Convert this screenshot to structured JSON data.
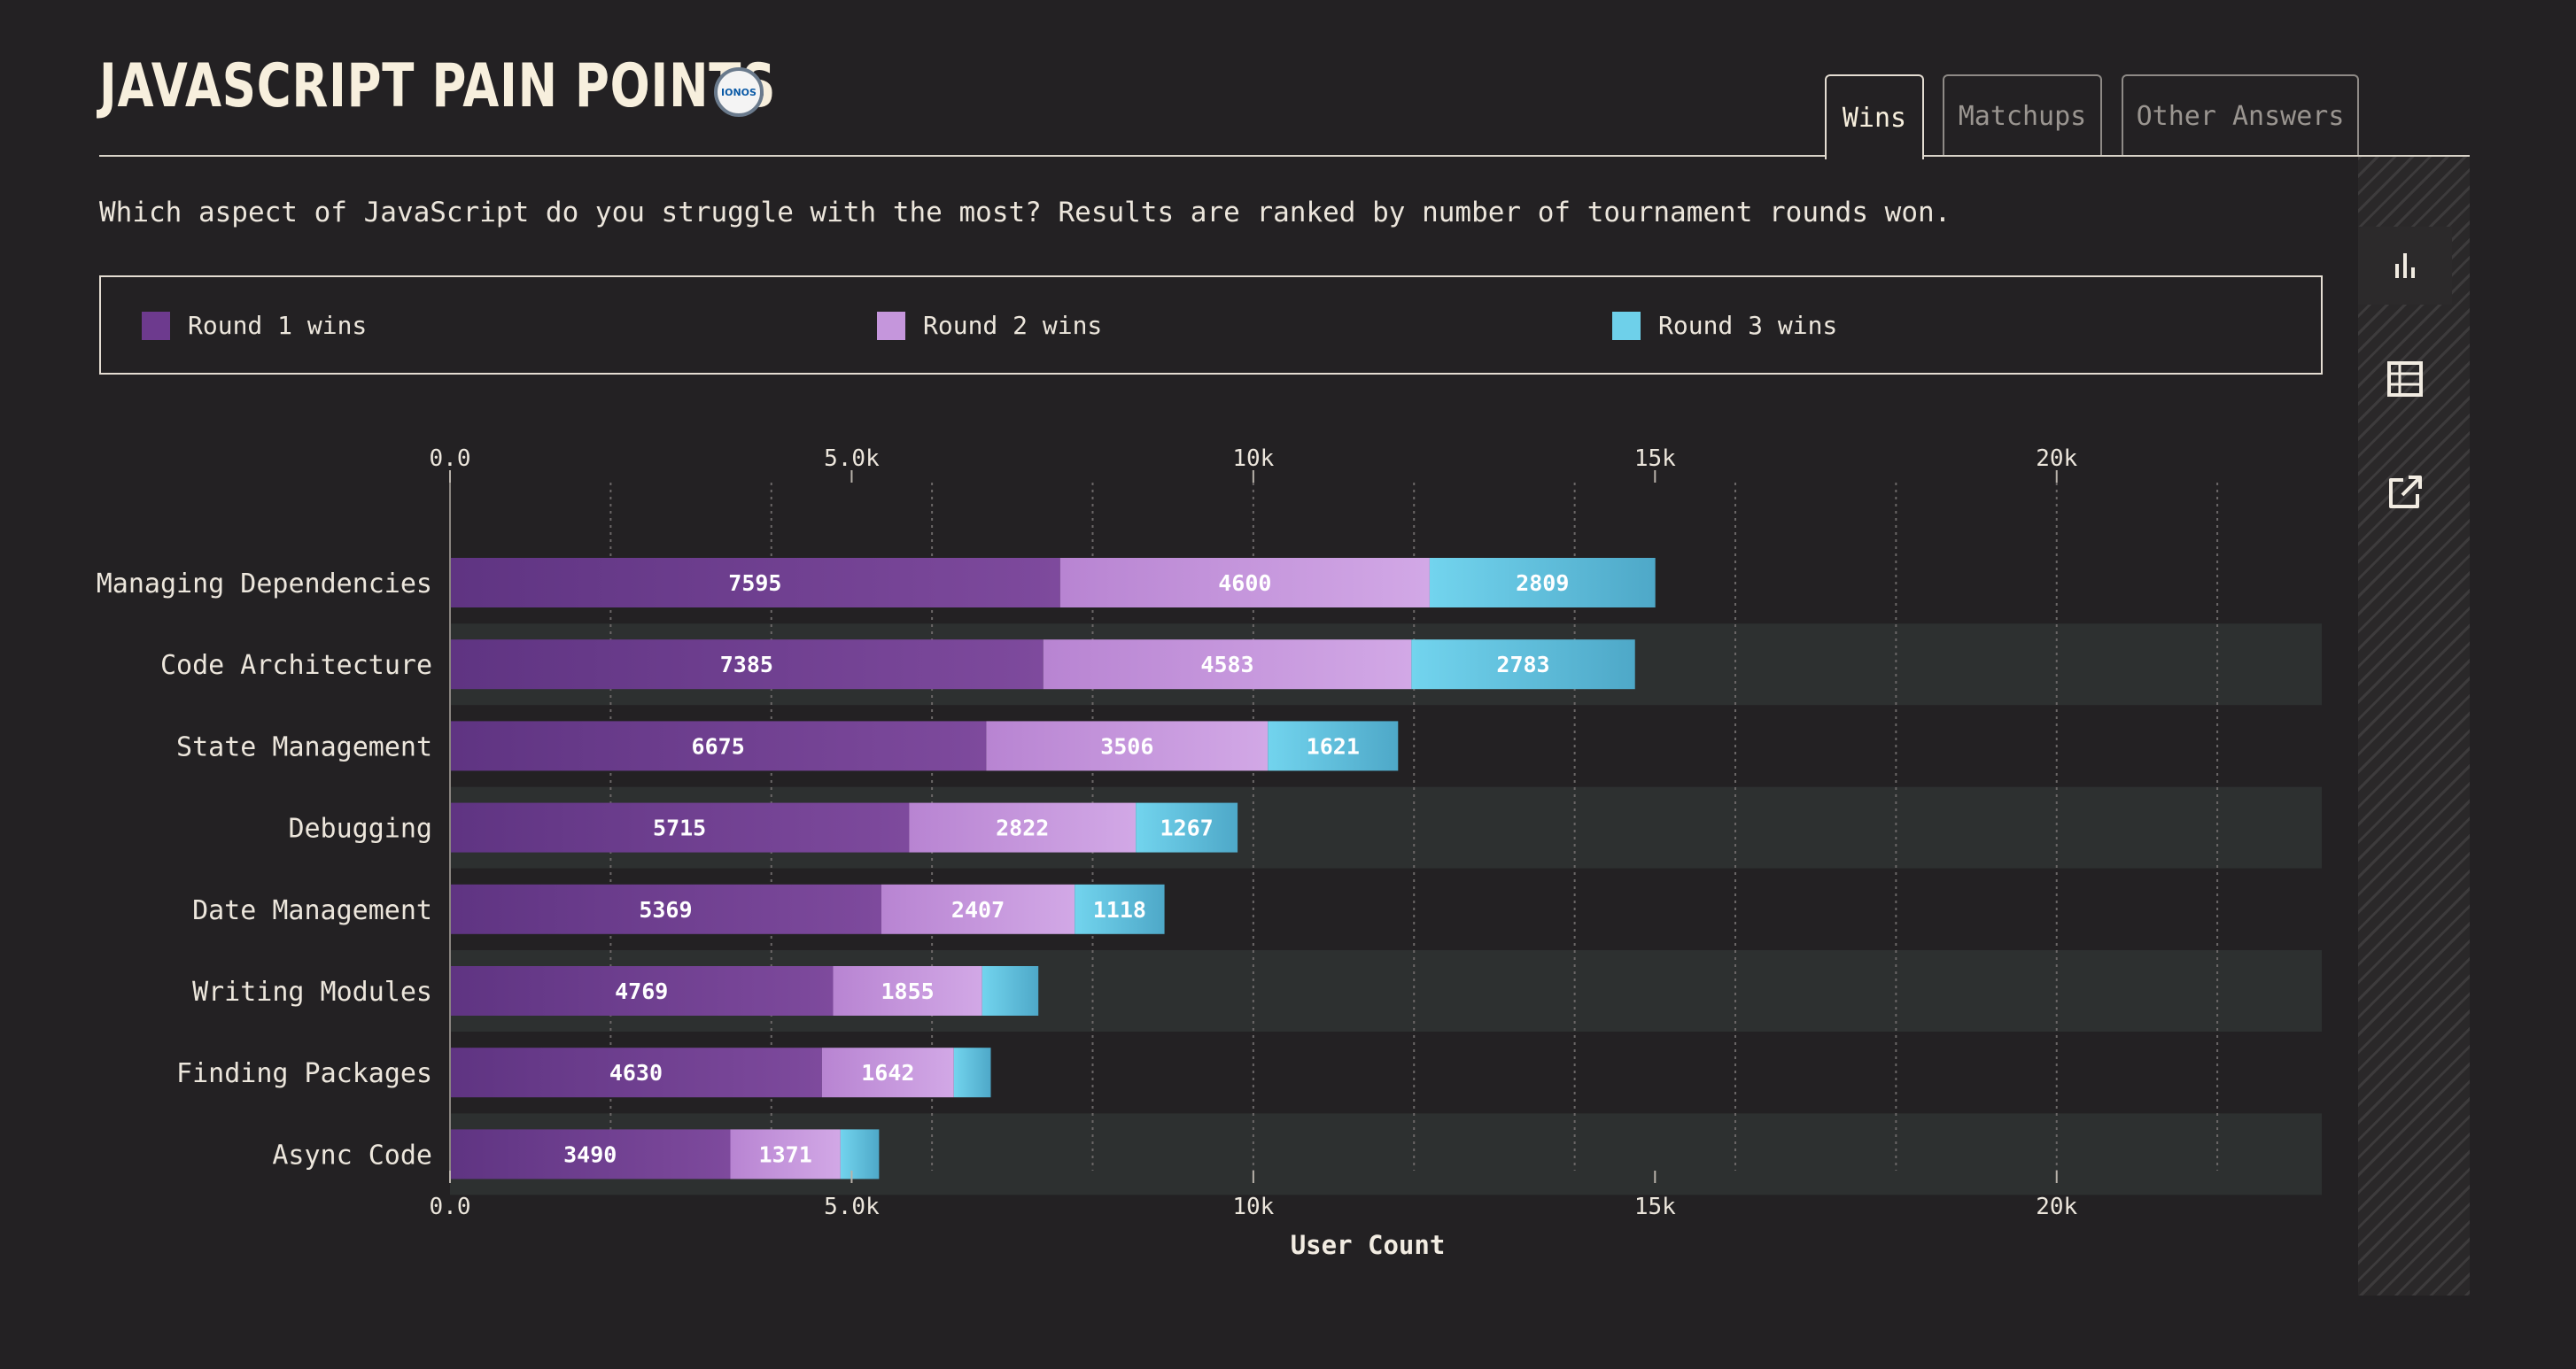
{
  "header": {
    "title": "JAVASCRIPT PAIN POINTS",
    "sponsor_label": "IONOS"
  },
  "tabs": [
    {
      "label": "Wins",
      "active": true
    },
    {
      "label": "Matchups",
      "active": false
    },
    {
      "label": "Other Answers",
      "active": false
    }
  ],
  "description": "Which aspect of JavaScript do you struggle with the most? Results are ranked by number of tournament rounds won.",
  "legend": [
    {
      "label": "Round 1 wins",
      "color": "#6d3a8e"
    },
    {
      "label": "Round 2 wins",
      "color": "#c596dc"
    },
    {
      "label": "Round 3 wins",
      "color": "#6ed0ea"
    }
  ],
  "sidebar": {
    "icons": [
      "bar-chart-icon",
      "table-icon",
      "external-link-icon"
    ]
  },
  "colors": {
    "background": "#232123",
    "row_band": "#2d3030",
    "round1": "#6d3a8e",
    "round2": "#c596dc",
    "round3": "#6ed0ea"
  },
  "chart_data": {
    "type": "bar",
    "orientation": "horizontal",
    "stacked": true,
    "xlabel": "User Count",
    "ylabel": "",
    "xlim": [
      0,
      23300
    ],
    "xticks": [
      0,
      5000,
      10000,
      15000,
      20000
    ],
    "xtick_labels": [
      "0.0",
      "5.0k",
      "10k",
      "15k",
      "20k"
    ],
    "categories": [
      "Managing Dependencies",
      "Code Architecture",
      "State Management",
      "Debugging",
      "Date Management",
      "Writing Modules",
      "Finding Packages",
      "Async Code"
    ],
    "series": [
      {
        "name": "Round 1 wins",
        "values": [
          7595,
          7385,
          6675,
          5715,
          5369,
          4769,
          4630,
          3490
        ]
      },
      {
        "name": "Round 2 wins",
        "values": [
          4600,
          4583,
          3506,
          2822,
          2407,
          1855,
          1642,
          1371
        ]
      },
      {
        "name": "Round 3 wins",
        "values": [
          2809,
          2783,
          1621,
          1267,
          1118,
          700,
          460,
          480
        ]
      }
    ],
    "value_labels_shown": [
      [
        true,
        true,
        true
      ],
      [
        true,
        true,
        true
      ],
      [
        true,
        true,
        true
      ],
      [
        true,
        true,
        true
      ],
      [
        true,
        true,
        true
      ],
      [
        true,
        true,
        false
      ],
      [
        true,
        true,
        false
      ],
      [
        true,
        true,
        false
      ]
    ]
  }
}
